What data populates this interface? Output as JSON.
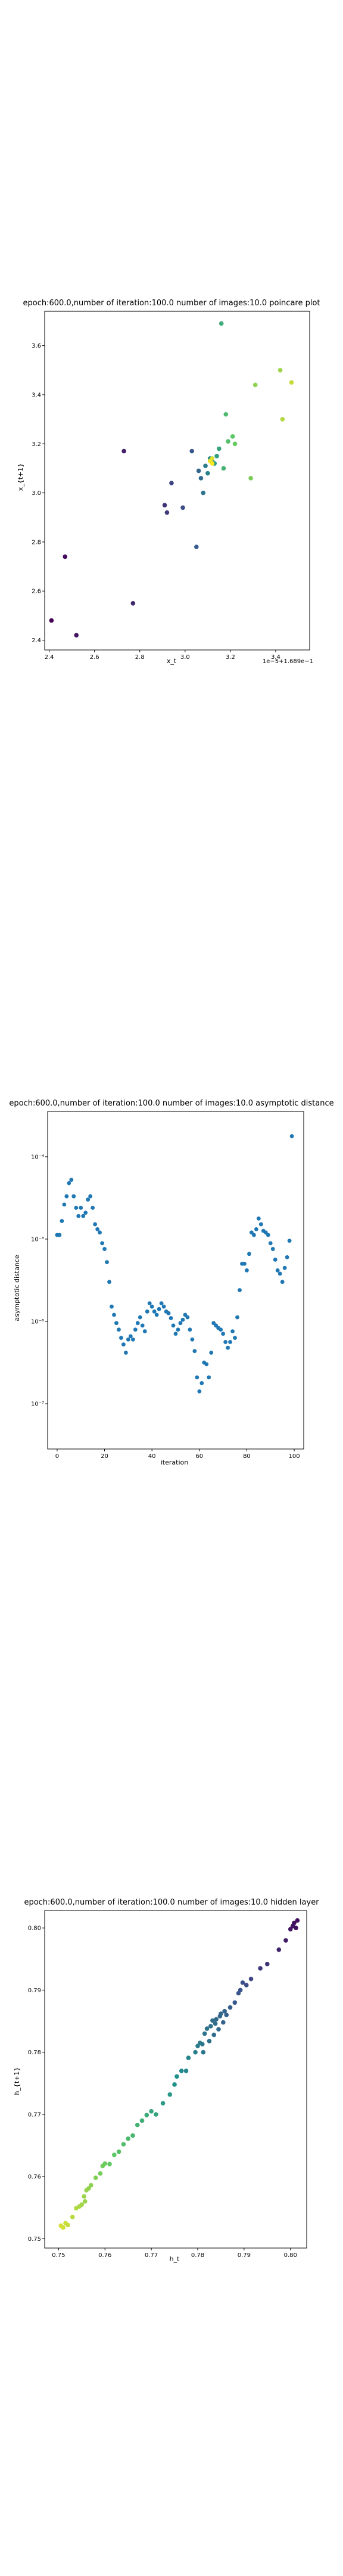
{
  "chart_data": [
    {
      "type": "scatter",
      "title": "epoch:600.0,number of iteration:100.0 number of images:10.0 poincare plot",
      "xlabel": "x_t",
      "ylabel": "x_{t+1}",
      "offset_label": "1e−5+1.689e−1",
      "xlim": [
        2.38,
        2.55
      ],
      "ylim": [
        2.36,
        3.74
      ],
      "xticks": [
        2.4,
        2.6,
        2.8,
        3.0,
        3.2,
        3.4
      ],
      "yticks": [
        2.4,
        2.6,
        2.8,
        3.0,
        3.2,
        3.4,
        3.6
      ],
      "colormap": "viridis",
      "points": [
        [
          2.41,
          2.48
        ],
        [
          2.47,
          2.74
        ],
        [
          2.52,
          2.42
        ],
        [
          2.73,
          3.17
        ],
        [
          2.77,
          2.55
        ],
        [
          2.91,
          2.95
        ],
        [
          2.92,
          2.92
        ],
        [
          2.94,
          3.04
        ],
        [
          2.99,
          2.94
        ],
        [
          3.03,
          3.17
        ],
        [
          3.05,
          2.78
        ],
        [
          3.06,
          3.09
        ],
        [
          3.07,
          3.06
        ],
        [
          3.08,
          3.0
        ],
        [
          3.09,
          3.11
        ],
        [
          3.1,
          3.08
        ],
        [
          3.11,
          3.14
        ],
        [
          3.12,
          3.13
        ],
        [
          3.13,
          3.12
        ],
        [
          3.14,
          3.15
        ],
        [
          3.15,
          3.18
        ],
        [
          3.16,
          3.69
        ],
        [
          3.17,
          3.1
        ],
        [
          3.18,
          3.32
        ],
        [
          3.19,
          3.21
        ],
        [
          3.21,
          3.23
        ],
        [
          3.22,
          3.2
        ],
        [
          3.29,
          3.06
        ],
        [
          3.31,
          3.44
        ],
        [
          3.42,
          3.5
        ],
        [
          3.43,
          3.3
        ],
        [
          3.47,
          3.45
        ],
        [
          3.12,
          3.14
        ],
        [
          3.11,
          3.13
        ],
        [
          3.12,
          3.12
        ]
      ]
    },
    {
      "type": "scatter",
      "title": "epoch:600.0,number of iteration:100.0  number of images:10.0 asymptotic distance",
      "xlabel": "iteration",
      "ylabel": "asymptotic distance",
      "xlim": [
        -4,
        104
      ],
      "ylog": true,
      "ylim_log10": [
        -7.55,
        -3.45
      ],
      "xticks": [
        0,
        20,
        40,
        60,
        80,
        100
      ],
      "yticks": [
        "10⁻⁷",
        "10⁻⁶",
        "10⁻⁵",
        "10⁻⁴"
      ],
      "point_color": "#1f77b4",
      "x": [
        0,
        1,
        2,
        3,
        4,
        5,
        6,
        7,
        8,
        9,
        10,
        11,
        12,
        13,
        14,
        15,
        16,
        17,
        18,
        19,
        20,
        21,
        22,
        23,
        24,
        25,
        26,
        27,
        28,
        29,
        30,
        31,
        32,
        33,
        34,
        35,
        36,
        37,
        38,
        39,
        40,
        41,
        42,
        43,
        44,
        45,
        46,
        47,
        48,
        49,
        50,
        51,
        52,
        53,
        54,
        55,
        56,
        57,
        58,
        59,
        60,
        61,
        62,
        63,
        64,
        65,
        66,
        67,
        68,
        69,
        70,
        71,
        72,
        73,
        74,
        75,
        76,
        77,
        78,
        79,
        80,
        81,
        82,
        83,
        84,
        85,
        86,
        87,
        88,
        89,
        90,
        91,
        92,
        93,
        94,
        95,
        96,
        97,
        98,
        99
      ],
      "y_log10": [
        -4.95,
        -4.95,
        -4.78,
        -4.58,
        -4.48,
        -4.32,
        -4.28,
        -4.48,
        -4.62,
        -4.72,
        -4.62,
        -4.72,
        -4.68,
        -4.52,
        -4.48,
        -4.62,
        -4.82,
        -4.88,
        -4.92,
        -5.05,
        -5.12,
        -5.28,
        -5.52,
        -5.82,
        -5.92,
        -6.02,
        -6.1,
        -6.2,
        -6.28,
        -6.38,
        -6.22,
        -6.18,
        -6.22,
        -6.1,
        -6.02,
        -5.95,
        -6.05,
        -6.12,
        -5.88,
        -5.78,
        -5.82,
        -5.88,
        -5.92,
        -5.85,
        -5.78,
        -5.82,
        -5.88,
        -5.9,
        -5.96,
        -6.05,
        -6.15,
        -6.1,
        -6.02,
        -5.98,
        -5.92,
        -5.95,
        -6.1,
        -6.22,
        -6.36,
        -6.68,
        -6.85,
        -6.75,
        -6.5,
        -6.52,
        -6.68,
        -6.38,
        -6.02,
        -6.05,
        -6.08,
        -6.1,
        -6.15,
        -6.25,
        -6.32,
        -6.25,
        -6.12,
        -6.2,
        -5.95,
        -5.62,
        -5.3,
        -5.3,
        -5.38,
        -5.18,
        -4.92,
        -4.95,
        -4.88,
        -4.75,
        -4.82,
        -4.9,
        -4.92,
        -4.95,
        -5.05,
        -5.12,
        -5.25,
        -5.38,
        -5.42,
        -5.52,
        -5.35,
        -5.22,
        -5.02,
        -3.75
      ]
    },
    {
      "type": "scatter",
      "title": "epoch:600.0,number of iteration:100.0  number of images:10.0 hidden layer",
      "xlabel": "h_t",
      "ylabel": "h_{t+1}",
      "xlim": [
        0.747,
        0.8035
      ],
      "ylim": [
        0.7485,
        0.8028
      ],
      "xticks": [
        0.75,
        0.76,
        0.77,
        0.78,
        0.79,
        0.8
      ],
      "yticks": [
        0.75,
        0.76,
        0.77,
        0.78,
        0.79,
        0.8
      ],
      "colormap": "viridis",
      "points": [
        [
          0.7505,
          0.7521
        ],
        [
          0.751,
          0.7518
        ],
        [
          0.7515,
          0.7525
        ],
        [
          0.752,
          0.7522
        ],
        [
          0.753,
          0.7535
        ],
        [
          0.7538,
          0.7549
        ],
        [
          0.7545,
          0.7552
        ],
        [
          0.755,
          0.7555
        ],
        [
          0.7557,
          0.756
        ],
        [
          0.7555,
          0.7568
        ],
        [
          0.756,
          0.7578
        ],
        [
          0.7565,
          0.7581
        ],
        [
          0.757,
          0.7586
        ],
        [
          0.758,
          0.7598
        ],
        [
          0.759,
          0.7605
        ],
        [
          0.7595,
          0.7617
        ],
        [
          0.76,
          0.7621
        ],
        [
          0.761,
          0.762
        ],
        [
          0.762,
          0.7635
        ],
        [
          0.763,
          0.764
        ],
        [
          0.764,
          0.7652
        ],
        [
          0.765,
          0.7661
        ],
        [
          0.766,
          0.7666
        ],
        [
          0.767,
          0.7683
        ],
        [
          0.768,
          0.769
        ],
        [
          0.769,
          0.7699
        ],
        [
          0.77,
          0.7705
        ],
        [
          0.771,
          0.77
        ],
        [
          0.7725,
          0.7718
        ],
        [
          0.774,
          0.7732
        ],
        [
          0.775,
          0.7748
        ],
        [
          0.7755,
          0.7761
        ],
        [
          0.7765,
          0.777
        ],
        [
          0.7775,
          0.777
        ],
        [
          0.778,
          0.7791
        ],
        [
          0.7795,
          0.78
        ],
        [
          0.78,
          0.781
        ],
        [
          0.7805,
          0.7815
        ],
        [
          0.781,
          0.7813
        ],
        [
          0.7812,
          0.78
        ],
        [
          0.7815,
          0.783
        ],
        [
          0.782,
          0.7838
        ],
        [
          0.7825,
          0.7818
        ],
        [
          0.7828,
          0.7842
        ],
        [
          0.7832,
          0.7851
        ],
        [
          0.7835,
          0.7828
        ],
        [
          0.7838,
          0.7846
        ],
        [
          0.784,
          0.7853
        ],
        [
          0.7845,
          0.7837
        ],
        [
          0.7848,
          0.7858
        ],
        [
          0.785,
          0.7862
        ],
        [
          0.7855,
          0.7848
        ],
        [
          0.7858,
          0.7866
        ],
        [
          0.7862,
          0.786
        ],
        [
          0.787,
          0.7872
        ],
        [
          0.788,
          0.788
        ],
        [
          0.7888,
          0.7895
        ],
        [
          0.7892,
          0.79
        ],
        [
          0.7897,
          0.7912
        ],
        [
          0.7905,
          0.7908
        ],
        [
          0.7915,
          0.7918
        ],
        [
          0.7935,
          0.7935
        ],
        [
          0.795,
          0.7942
        ],
        [
          0.7975,
          0.7965
        ],
        [
          0.799,
          0.798
        ],
        [
          0.8,
          0.7998
        ],
        [
          0.8008,
          0.8008
        ],
        [
          0.8012,
          0.8
        ],
        [
          0.8015,
          0.8012
        ],
        [
          0.8005,
          0.8003
        ]
      ]
    }
  ]
}
